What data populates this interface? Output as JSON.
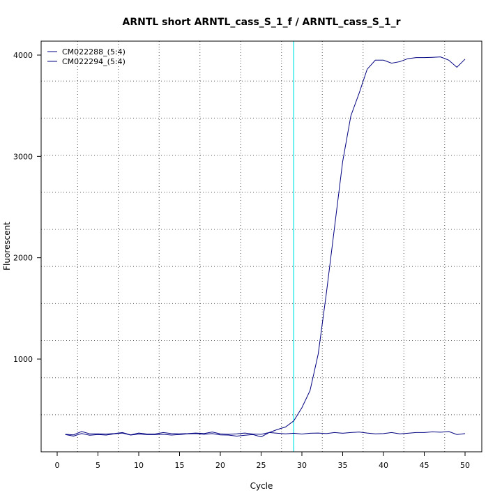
{
  "chart_data": {
    "type": "line",
    "title": "ARNTL short ARNTL_cass_S_1_f / ARNTL_cass_S_1_r",
    "xlabel": "Cycle",
    "ylabel": "Fluorescent",
    "xlim": [
      0,
      51
    ],
    "ylim": [
      150,
      4100
    ],
    "x_ticks": [
      0,
      5,
      10,
      15,
      20,
      25,
      30,
      35,
      40,
      45,
      50
    ],
    "y_ticks": [
      1000,
      2000,
      3000,
      4000
    ],
    "grid": true,
    "grid_style": "dotted",
    "legend_position": "top-left",
    "threshold_cycle": 29,
    "threshold_color": "#00e5e5",
    "x": [
      1,
      2,
      3,
      4,
      5,
      6,
      7,
      8,
      9,
      10,
      11,
      12,
      13,
      14,
      15,
      16,
      17,
      18,
      19,
      20,
      21,
      22,
      23,
      24,
      25,
      26,
      27,
      28,
      29,
      30,
      31,
      32,
      33,
      34,
      35,
      36,
      37,
      38,
      39,
      40,
      41,
      42,
      43,
      44,
      45,
      46,
      47,
      48,
      49,
      50
    ],
    "series": [
      {
        "name": "CM022288_(5:4)",
        "color": "#000080",
        "values": [
          255,
          240,
          265,
          248,
          255,
          250,
          262,
          270,
          250,
          260,
          255,
          255,
          258,
          250,
          255,
          262,
          265,
          258,
          265,
          252,
          250,
          240,
          248,
          255,
          232,
          275,
          305,
          330,
          390,
          520,
          690,
          1050,
          1650,
          2300,
          2950,
          3400,
          3620,
          3860,
          3950,
          3950,
          3920,
          3935,
          3965,
          3975,
          3975,
          3978,
          3982,
          3950,
          3880,
          3960
        ]
      },
      {
        "name": "CM022294_(5:4)",
        "color": "#000080",
        "values": [
          258,
          252,
          285,
          262,
          262,
          260,
          265,
          275,
          252,
          270,
          260,
          260,
          275,
          265,
          262,
          265,
          270,
          265,
          280,
          262,
          258,
          262,
          270,
          260,
          258,
          275,
          268,
          262,
          268,
          260,
          268,
          270,
          265,
          275,
          268,
          275,
          280,
          270,
          262,
          265,
          275,
          262,
          268,
          275,
          275,
          282,
          278,
          285,
          255,
          265
        ]
      }
    ]
  }
}
